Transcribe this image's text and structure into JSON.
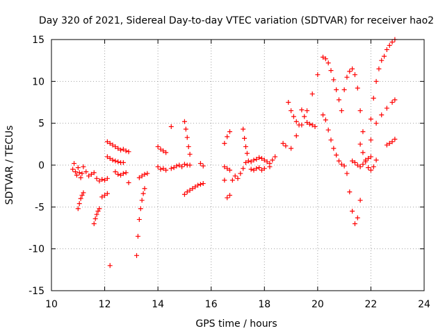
{
  "chart_data": {
    "type": "scatter",
    "title": "Day 320 of 2021, Sidereal Day-to-day VTEC variation (SDTVAR) for receiver hao2",
    "xlabel": "GPS time / hours",
    "ylabel": "SDTVAR / TECUs",
    "xlim": [
      10,
      24
    ],
    "ylim": [
      -15,
      15
    ],
    "xticks": [
      10,
      12,
      14,
      16,
      18,
      20,
      22,
      24
    ],
    "yticks": [
      -15,
      -10,
      -5,
      0,
      5,
      10,
      15
    ],
    "xtick_labels": [
      "10",
      "12",
      "14",
      "16",
      "18",
      "20",
      "22",
      "24"
    ],
    "ytick_labels": [
      "-15",
      "-10",
      "-5",
      "0",
      "5",
      "10",
      "15"
    ],
    "grid": true,
    "legend": "none",
    "marker": "+",
    "color": "#ff0000",
    "series": [
      {
        "x": [
          10.8,
          10.85,
          10.9,
          10.95,
          11.0,
          11.05,
          11.1,
          11.15
        ],
        "y": [
          -0.5,
          0.2,
          -0.8,
          -1.2,
          -0.3,
          -0.9,
          -1.5,
          -1.0
        ]
      },
      {
        "x": [
          11.0,
          11.05,
          11.1,
          11.15,
          11.2
        ],
        "y": [
          -5.2,
          -4.6,
          -4.0,
          -3.6,
          -3.3
        ]
      },
      {
        "x": [
          11.2,
          11.3,
          11.4,
          11.5,
          11.6,
          11.7
        ],
        "y": [
          -0.2,
          -0.8,
          -1.3,
          -1.1,
          -0.9,
          -1.6
        ]
      },
      {
        "x": [
          11.6,
          11.65,
          11.7,
          11.75,
          11.8
        ],
        "y": [
          -7.0,
          -6.4,
          -5.9,
          -5.5,
          -5.2
        ]
      },
      {
        "x": [
          11.8,
          11.9,
          12.0,
          12.1
        ],
        "y": [
          -1.9,
          -1.7,
          -1.8,
          -1.6
        ]
      },
      {
        "x": [
          11.9,
          12.0,
          12.1
        ],
        "y": [
          -3.8,
          -3.6,
          -3.4
        ]
      },
      {
        "x": [
          12.1,
          12.2,
          12.3,
          12.4,
          12.5,
          12.6,
          12.7,
          12.8,
          12.9
        ],
        "y": [
          2.8,
          2.6,
          2.4,
          2.2,
          2.0,
          1.8,
          1.9,
          1.7,
          1.6
        ]
      },
      {
        "x": [
          12.1,
          12.2,
          12.3,
          12.4,
          12.5,
          12.6,
          12.7
        ],
        "y": [
          1.0,
          0.8,
          0.6,
          0.5,
          0.4,
          0.3,
          0.3
        ]
      },
      {
        "x": [
          12.2
        ],
        "y": [
          -12.0
        ]
      },
      {
        "x": [
          12.4,
          12.5,
          12.6,
          12.7,
          12.8,
          12.9
        ],
        "y": [
          -0.8,
          -1.1,
          -1.2,
          -1.0,
          -0.9,
          -2.1
        ]
      },
      {
        "x": [
          13.2,
          13.25,
          13.3,
          13.35,
          13.4,
          13.45,
          13.5
        ],
        "y": [
          -10.8,
          -8.5,
          -6.5,
          -5.2,
          -4.2,
          -3.4,
          -2.8
        ]
      },
      {
        "x": [
          13.3,
          13.4,
          13.5,
          13.6
        ],
        "y": [
          -1.5,
          -1.3,
          -1.1,
          -1.0
        ]
      },
      {
        "x": [
          14.0,
          14.1,
          14.2,
          14.3
        ],
        "y": [
          -0.2,
          -0.5,
          -0.4,
          -0.6
        ]
      },
      {
        "x": [
          14.0,
          14.1,
          14.2,
          14.3
        ],
        "y": [
          2.2,
          1.9,
          1.7,
          1.5
        ]
      },
      {
        "x": [
          14.5
        ],
        "y": [
          4.6
        ]
      },
      {
        "x": [
          14.5,
          14.6,
          14.7,
          14.8,
          14.9,
          15.0,
          15.1,
          15.2
        ],
        "y": [
          -0.4,
          -0.3,
          -0.1,
          0.0,
          -0.2,
          0.1,
          0.0,
          0.0
        ]
      },
      {
        "x": [
          15.0,
          15.05,
          15.1,
          15.15,
          15.2
        ],
        "y": [
          5.2,
          4.3,
          3.3,
          2.2,
          1.3
        ]
      },
      {
        "x": [
          15.0,
          15.1,
          15.2,
          15.3,
          15.4,
          15.5,
          15.6,
          15.7
        ],
        "y": [
          -3.5,
          -3.2,
          -3.0,
          -2.8,
          -2.6,
          -2.4,
          -2.3,
          -2.2
        ]
      },
      {
        "x": [
          15.6,
          15.7
        ],
        "y": [
          0.2,
          -0.1
        ]
      },
      {
        "x": [
          16.5
        ],
        "y": [
          -1.8
        ]
      },
      {
        "x": [
          16.5,
          16.6,
          16.7
        ],
        "y": [
          2.6,
          3.4,
          4.0
        ]
      },
      {
        "x": [
          16.5,
          16.6,
          16.7
        ],
        "y": [
          -0.2,
          -0.4,
          -0.6
        ]
      },
      {
        "x": [
          16.6,
          16.7
        ],
        "y": [
          -3.9,
          -3.6
        ]
      },
      {
        "x": [
          16.8,
          16.9
        ],
        "y": [
          -1.8,
          -1.3
        ]
      },
      {
        "x": [
          17.0,
          17.1,
          17.2
        ],
        "y": [
          -1.6,
          -1.0,
          -0.4
        ]
      },
      {
        "x": [
          17.2,
          17.25,
          17.3,
          17.35
        ],
        "y": [
          4.3,
          3.2,
          2.2,
          1.4
        ]
      },
      {
        "x": [
          17.3,
          17.4
        ],
        "y": [
          0.3,
          0.5
        ]
      },
      {
        "x": [
          17.5,
          17.6,
          17.7,
          17.8,
          17.9,
          18.0
        ],
        "y": [
          -0.5,
          -0.6,
          -0.4,
          -0.3,
          -0.6,
          -0.4
        ]
      },
      {
        "x": [
          17.5,
          17.6,
          17.7,
          17.8,
          17.9,
          18.0,
          18.1,
          18.2
        ],
        "y": [
          0.4,
          0.6,
          0.7,
          0.9,
          0.8,
          0.6,
          0.4,
          0.2
        ]
      },
      {
        "x": [
          18.2,
          18.3,
          18.4
        ],
        "y": [
          -0.2,
          0.6,
          1.0
        ]
      },
      {
        "x": [
          18.7,
          18.8
        ],
        "y": [
          2.6,
          2.3
        ]
      },
      {
        "x": [
          18.9,
          19.0,
          19.1,
          19.2,
          19.3
        ],
        "y": [
          7.5,
          6.5,
          5.8,
          5.2,
          4.8
        ]
      },
      {
        "x": [
          19.0,
          19.2,
          19.4,
          19.6,
          19.8,
          20.0
        ],
        "y": [
          2.0,
          3.5,
          4.8,
          6.5,
          8.5,
          10.8
        ]
      },
      {
        "x": [
          19.4,
          19.5,
          19.6,
          19.7,
          19.8,
          19.9
        ],
        "y": [
          6.6,
          5.8,
          5.1,
          4.9,
          4.8,
          4.6
        ]
      },
      {
        "x": [
          20.2,
          20.3,
          20.4,
          20.5,
          20.6,
          20.7,
          20.8
        ],
        "y": [
          12.9,
          12.7,
          12.2,
          11.3,
          10.2,
          9.0,
          7.8
        ]
      },
      {
        "x": [
          20.2,
          20.3,
          20.4,
          20.5,
          20.6,
          20.7,
          20.8,
          20.9,
          21.0
        ],
        "y": [
          6.0,
          5.4,
          4.2,
          3.0,
          2.0,
          1.2,
          0.5,
          0.1,
          -0.1
        ]
      },
      {
        "x": [
          20.9,
          21.0,
          21.1,
          21.2,
          21.3,
          21.4,
          21.5,
          21.6,
          21.7
        ],
        "y": [
          6.5,
          9.0,
          10.5,
          11.2,
          11.5,
          10.8,
          9.2,
          6.5,
          4.0
        ]
      },
      {
        "x": [
          21.1,
          21.2,
          21.3,
          21.4,
          21.5,
          21.6
        ],
        "y": [
          -1.0,
          -3.2,
          -5.5,
          -7.0,
          -6.3,
          -4.2
        ]
      },
      {
        "x": [
          21.3,
          21.4,
          21.5,
          21.6,
          21.7,
          21.8,
          21.9,
          22.0
        ],
        "y": [
          0.5,
          0.3,
          0.0,
          -0.2,
          0.1,
          0.4,
          0.8,
          1.0
        ]
      },
      {
        "x": [
          21.6,
          21.7,
          21.8,
          21.9,
          22.0,
          22.1,
          22.2
        ],
        "y": [
          2.5,
          1.5,
          0.6,
          -0.3,
          -0.6,
          -0.2,
          0.6
        ]
      },
      {
        "x": [
          22.0,
          22.1,
          22.2,
          22.3,
          22.4,
          22.5,
          22.6,
          22.7,
          22.8,
          22.9
        ],
        "y": [
          5.5,
          8.0,
          10.0,
          11.5,
          12.5,
          13.0,
          13.8,
          14.3,
          14.7,
          15.0
        ]
      },
      {
        "x": [
          22.0,
          22.2,
          22.4,
          22.6,
          22.8,
          22.9
        ],
        "y": [
          3.0,
          5.0,
          6.0,
          6.8,
          7.5,
          7.8
        ]
      },
      {
        "x": [
          22.6,
          22.7,
          22.8,
          22.9
        ],
        "y": [
          2.4,
          2.6,
          2.8,
          3.1
        ]
      }
    ]
  }
}
